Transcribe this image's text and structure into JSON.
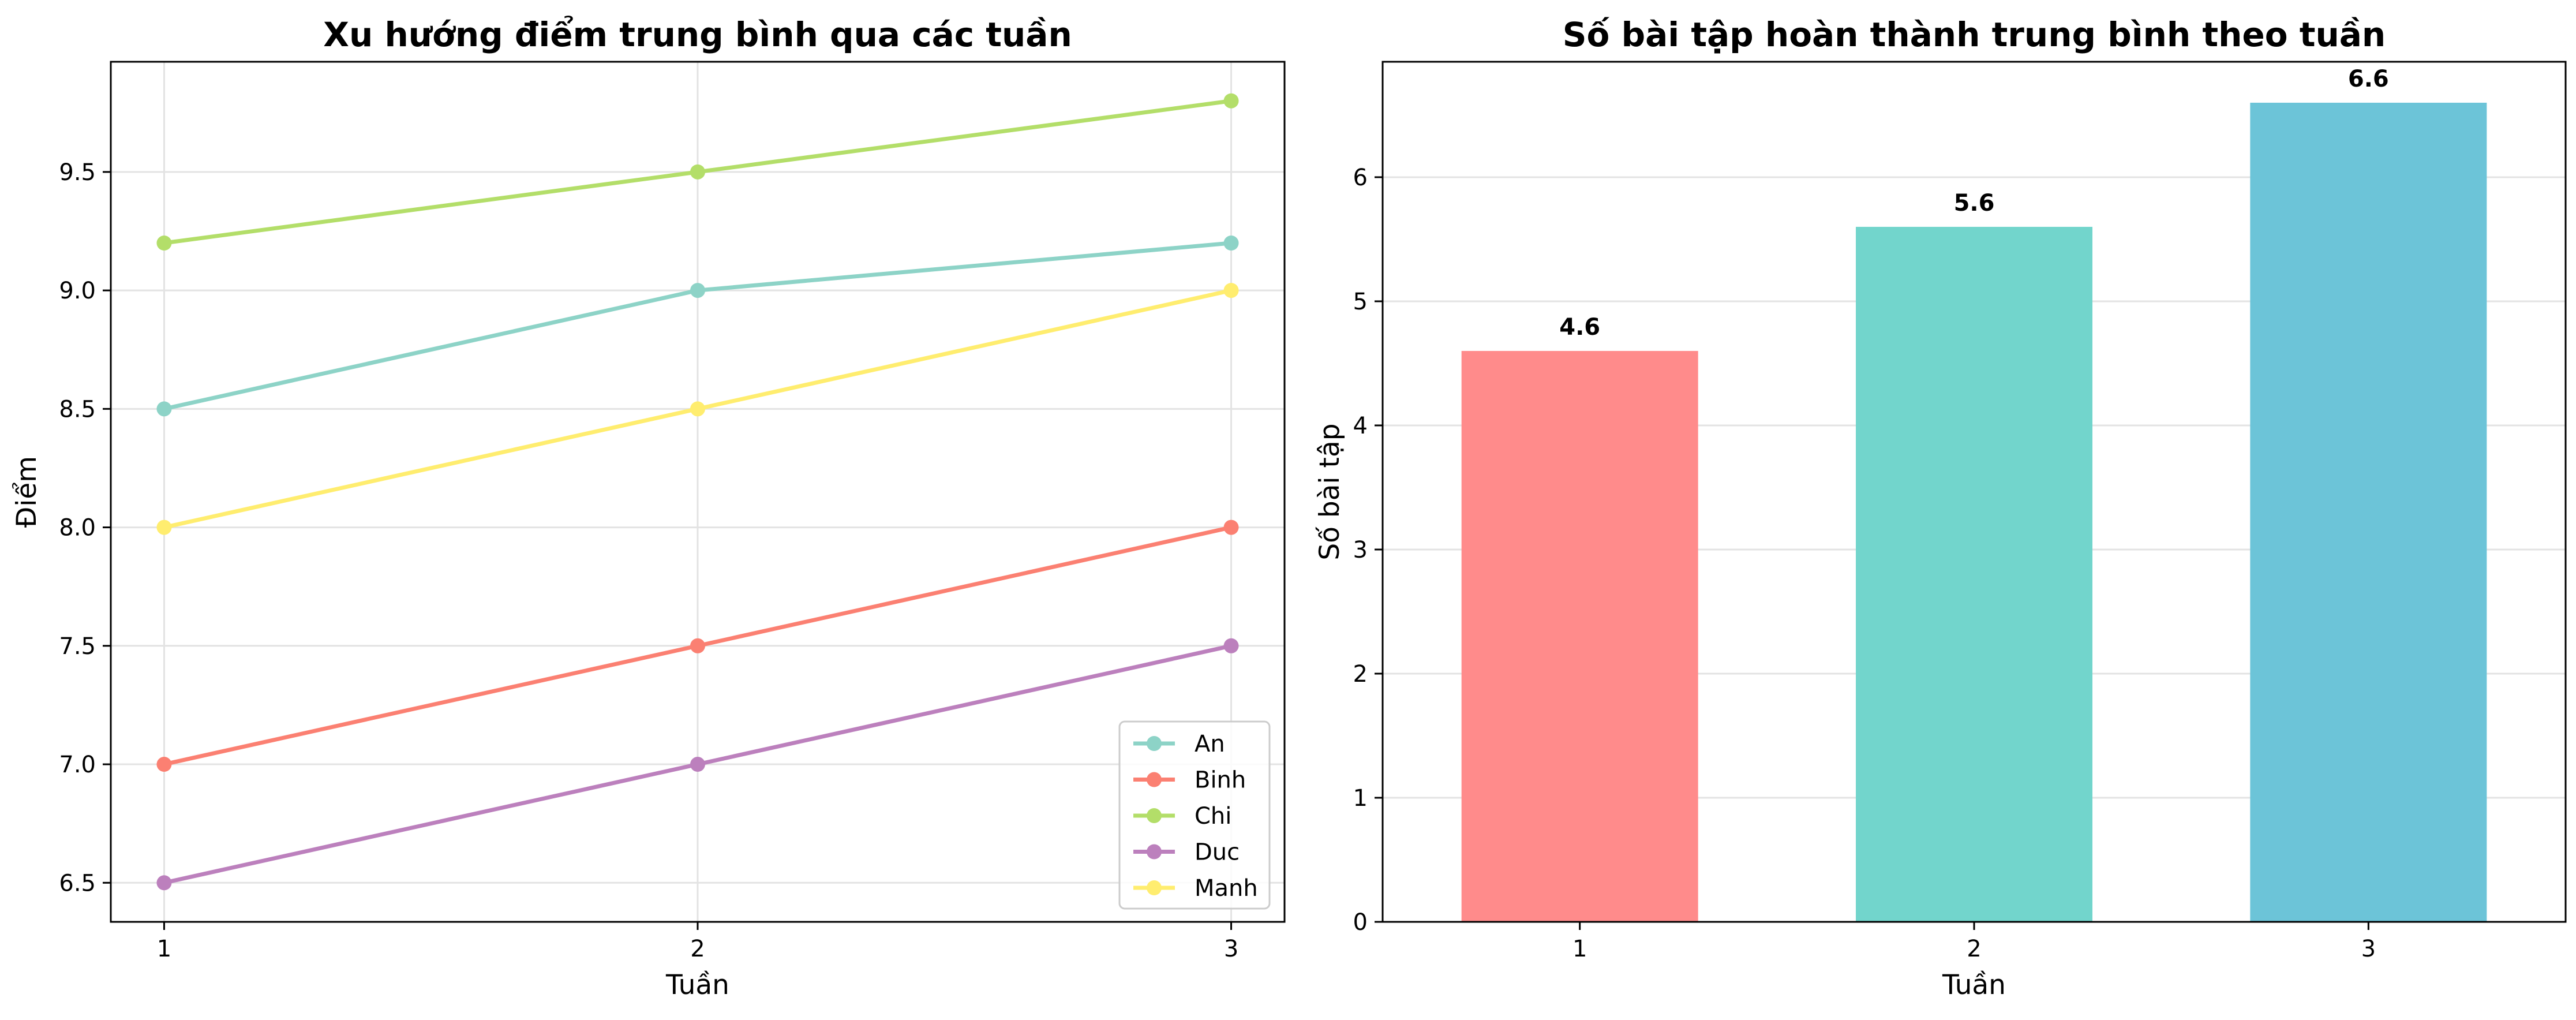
{
  "chart_data": [
    {
      "type": "line",
      "title": "Xu hướng điểm trung bình qua các tuần",
      "xlabel": "Tuần",
      "ylabel": "Điểm",
      "x": [
        1,
        2,
        3
      ],
      "xticks": [
        "1",
        "2",
        "3"
      ],
      "yticks": [
        "6.5",
        "7.0",
        "7.5",
        "8.0",
        "8.5",
        "9.0",
        "9.5"
      ],
      "xlim": [
        0.9,
        3.1
      ],
      "ylim": [
        6.335,
        9.965
      ],
      "grid": true,
      "legend": "bottom-right",
      "series": [
        {
          "name": "An",
          "values": [
            8.5,
            9.0,
            9.2
          ],
          "color": "#8dd3c7"
        },
        {
          "name": "Binh",
          "values": [
            7.0,
            7.5,
            8.0
          ],
          "color": "#fb8072"
        },
        {
          "name": "Chi",
          "values": [
            9.2,
            9.5,
            9.8
          ],
          "color": "#b3de69"
        },
        {
          "name": "Duc",
          "values": [
            6.5,
            7.0,
            7.5
          ],
          "color": "#bc80bd"
        },
        {
          "name": "Manh",
          "values": [
            8.0,
            8.5,
            9.0
          ],
          "color": "#ffed6f"
        }
      ]
    },
    {
      "type": "bar",
      "title": "Số bài tập hoàn thành trung bình theo tuần",
      "xlabel": "Tuần",
      "ylabel": "Số bài tập",
      "categories": [
        "1",
        "2",
        "3"
      ],
      "values": [
        4.6,
        5.6,
        6.6
      ],
      "data_labels": [
        "4.6",
        "5.6",
        "6.6"
      ],
      "yticks": [
        "0",
        "1",
        "2",
        "3",
        "4",
        "5",
        "6"
      ],
      "ylim": [
        0,
        6.93
      ],
      "grid": true,
      "colors": [
        "#ff8b8b",
        "#72d5cc",
        "#6cc4d8"
      ]
    }
  ]
}
